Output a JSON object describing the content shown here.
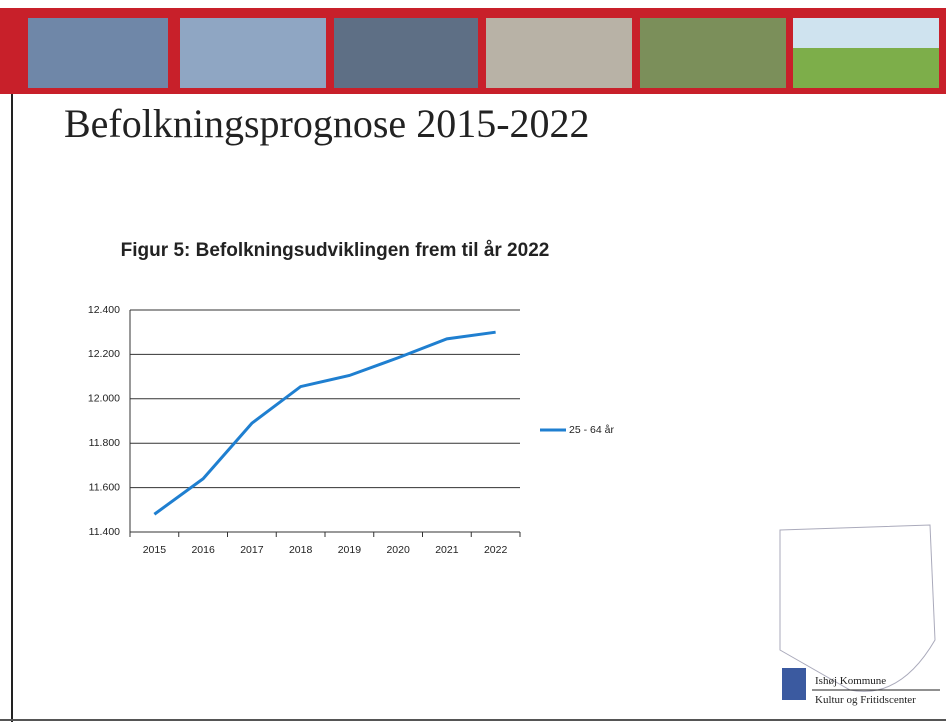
{
  "slide": {
    "title": "Befolkningsprognose 2015-2022",
    "logo_lines": [
      "Ishøj Kommune",
      "Kultur og Fritidscenter"
    ]
  },
  "chart_data": {
    "type": "line",
    "title": "Figur 5: Befolkningsudviklingen frem til år 2022",
    "categories": [
      "2015",
      "2016",
      "2017",
      "2018",
      "2019",
      "2020",
      "2021",
      "2022"
    ],
    "series": [
      {
        "name": "25 - 64 år",
        "color": "#1f7fd0",
        "values": [
          11480,
          11640,
          11890,
          12055,
          12105,
          12185,
          12270,
          12300
        ]
      }
    ],
    "ylim": [
      11400,
      12400
    ],
    "yticks": [
      {
        "value": 11400,
        "label": "11.400"
      },
      {
        "value": 11600,
        "label": "11.600"
      },
      {
        "value": 11800,
        "label": "11.800"
      },
      {
        "value": 12000,
        "label": "12.000"
      },
      {
        "value": 12200,
        "label": "12.200"
      },
      {
        "value": 12400,
        "label": "12.400"
      }
    ],
    "grid": true,
    "legend": "right"
  }
}
